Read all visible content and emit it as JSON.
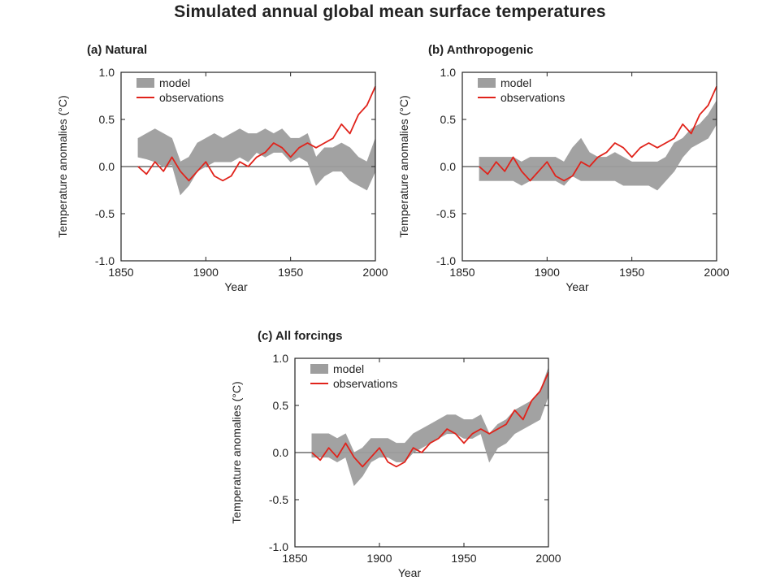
{
  "title": "Simulated annual global mean surface temperatures",
  "colors": {
    "model": "#9e9e9e",
    "observations": "#e0231b",
    "axis": "#222222"
  },
  "chart_data": [
    {
      "type": "line",
      "panel_label": "(a) Natural",
      "xlabel": "Year",
      "ylabel": "Temperature anomalies (°C)",
      "xlim": [
        1850,
        2000
      ],
      "ylim": [
        -1.0,
        1.0
      ],
      "xticks": [
        "1850",
        "1900",
        "1950",
        "2000"
      ],
      "yticks": [
        "-1.0",
        "-0.5",
        "0.0",
        "0.5",
        "1.0"
      ],
      "legend_position": "top-left",
      "x": [
        1860,
        1865,
        1870,
        1875,
        1880,
        1885,
        1890,
        1895,
        1900,
        1905,
        1910,
        1915,
        1920,
        1925,
        1930,
        1935,
        1940,
        1945,
        1950,
        1955,
        1960,
        1965,
        1970,
        1975,
        1980,
        1985,
        1990,
        1995,
        2000
      ],
      "series": [
        {
          "name": "model",
          "style": "band",
          "lower": [
            0.1,
            0.08,
            0.05,
            0.0,
            0.02,
            -0.3,
            -0.2,
            -0.05,
            0.0,
            0.05,
            0.05,
            0.05,
            0.1,
            0.05,
            0.15,
            0.1,
            0.15,
            0.15,
            0.05,
            0.1,
            0.05,
            -0.2,
            -0.1,
            -0.05,
            -0.05,
            -0.15,
            -0.2,
            -0.25,
            -0.05
          ],
          "upper": [
            0.3,
            0.35,
            0.4,
            0.35,
            0.3,
            0.05,
            0.1,
            0.25,
            0.3,
            0.35,
            0.3,
            0.35,
            0.4,
            0.35,
            0.35,
            0.4,
            0.35,
            0.4,
            0.3,
            0.3,
            0.35,
            0.1,
            0.2,
            0.2,
            0.25,
            0.2,
            0.1,
            0.05,
            0.3
          ]
        },
        {
          "name": "observations",
          "style": "line",
          "values": [
            0.0,
            -0.08,
            0.05,
            -0.05,
            0.1,
            -0.05,
            -0.15,
            -0.05,
            0.05,
            -0.1,
            -0.15,
            -0.1,
            0.05,
            0.0,
            0.1,
            0.15,
            0.25,
            0.2,
            0.1,
            0.2,
            0.25,
            0.2,
            0.25,
            0.3,
            0.45,
            0.35,
            0.55,
            0.65,
            0.85
          ]
        }
      ]
    },
    {
      "type": "line",
      "panel_label": "(b) Anthropogenic",
      "xlabel": "Year",
      "ylabel": "Temperature anomalies (°C)",
      "xlim": [
        1850,
        2000
      ],
      "ylim": [
        -1.0,
        1.0
      ],
      "xticks": [
        "1850",
        "1900",
        "1950",
        "2000"
      ],
      "yticks": [
        "-1.0",
        "-0.5",
        "0.0",
        "0.5",
        "1.0"
      ],
      "legend_position": "top-left",
      "x": [
        1860,
        1865,
        1870,
        1875,
        1880,
        1885,
        1890,
        1895,
        1900,
        1905,
        1910,
        1915,
        1920,
        1925,
        1930,
        1935,
        1940,
        1945,
        1950,
        1955,
        1960,
        1965,
        1970,
        1975,
        1980,
        1985,
        1990,
        1995,
        2000
      ],
      "series": [
        {
          "name": "model",
          "style": "band",
          "lower": [
            -0.15,
            -0.15,
            -0.15,
            -0.15,
            -0.15,
            -0.2,
            -0.15,
            -0.15,
            -0.15,
            -0.15,
            -0.2,
            -0.1,
            -0.15,
            -0.15,
            -0.15,
            -0.15,
            -0.15,
            -0.2,
            -0.2,
            -0.2,
            -0.2,
            -0.25,
            -0.15,
            -0.05,
            0.1,
            0.2,
            0.25,
            0.3,
            0.45
          ],
          "upper": [
            0.1,
            0.1,
            0.1,
            0.1,
            0.1,
            0.05,
            0.1,
            0.1,
            0.1,
            0.1,
            0.05,
            0.2,
            0.3,
            0.15,
            0.1,
            0.1,
            0.15,
            0.1,
            0.05,
            0.05,
            0.05,
            0.05,
            0.1,
            0.25,
            0.3,
            0.4,
            0.45,
            0.55,
            0.7
          ]
        },
        {
          "name": "observations",
          "style": "line",
          "values": [
            0.0,
            -0.08,
            0.05,
            -0.05,
            0.1,
            -0.05,
            -0.15,
            -0.05,
            0.05,
            -0.1,
            -0.15,
            -0.1,
            0.05,
            0.0,
            0.1,
            0.15,
            0.25,
            0.2,
            0.1,
            0.2,
            0.25,
            0.2,
            0.25,
            0.3,
            0.45,
            0.35,
            0.55,
            0.65,
            0.85
          ]
        }
      ]
    },
    {
      "type": "line",
      "panel_label": "(c) All forcings",
      "xlabel": "Year",
      "ylabel": "Temperature anomalies (°C)",
      "xlim": [
        1850,
        2000
      ],
      "ylim": [
        -1.0,
        1.0
      ],
      "xticks": [
        "1850",
        "1900",
        "1950",
        "2000"
      ],
      "yticks": [
        "-1.0",
        "-0.5",
        "0.0",
        "0.5",
        "1.0"
      ],
      "legend_position": "top-left",
      "x": [
        1860,
        1865,
        1870,
        1875,
        1880,
        1885,
        1890,
        1895,
        1900,
        1905,
        1910,
        1915,
        1920,
        1925,
        1930,
        1935,
        1940,
        1945,
        1950,
        1955,
        1960,
        1965,
        1970,
        1975,
        1980,
        1985,
        1990,
        1995,
        2000
      ],
      "series": [
        {
          "name": "model",
          "style": "band",
          "lower": [
            -0.05,
            -0.05,
            -0.05,
            -0.1,
            -0.05,
            -0.35,
            -0.25,
            -0.1,
            -0.05,
            -0.05,
            -0.1,
            -0.1,
            0.0,
            0.05,
            0.1,
            0.15,
            0.2,
            0.2,
            0.15,
            0.15,
            0.2,
            -0.1,
            0.05,
            0.1,
            0.2,
            0.25,
            0.3,
            0.35,
            0.6
          ],
          "upper": [
            0.2,
            0.2,
            0.2,
            0.15,
            0.2,
            0.0,
            0.05,
            0.15,
            0.15,
            0.15,
            0.1,
            0.1,
            0.2,
            0.25,
            0.3,
            0.35,
            0.4,
            0.4,
            0.35,
            0.35,
            0.4,
            0.2,
            0.3,
            0.35,
            0.45,
            0.5,
            0.55,
            0.65,
            0.9
          ]
        },
        {
          "name": "observations",
          "style": "line",
          "values": [
            0.0,
            -0.08,
            0.05,
            -0.05,
            0.1,
            -0.05,
            -0.15,
            -0.05,
            0.05,
            -0.1,
            -0.15,
            -0.1,
            0.05,
            0.0,
            0.1,
            0.15,
            0.25,
            0.2,
            0.1,
            0.2,
            0.25,
            0.2,
            0.25,
            0.3,
            0.45,
            0.35,
            0.55,
            0.65,
            0.85
          ]
        }
      ]
    }
  ]
}
